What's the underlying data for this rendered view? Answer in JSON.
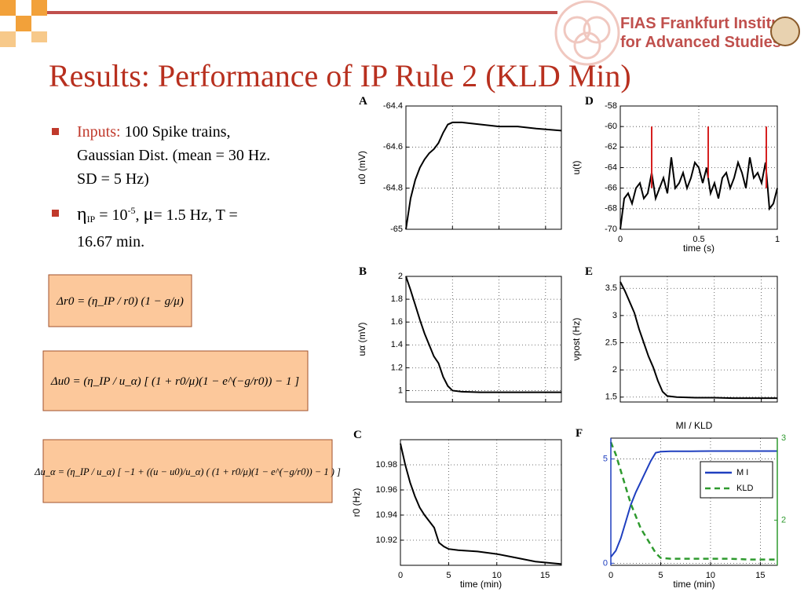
{
  "header": {
    "title": "Results: Performance of IP Rule 2 (KLD Min)",
    "logo_line1": "FIAS Frankfurt Institute",
    "logo_line2": "for Advanced Studies"
  },
  "bullets": [
    {
      "lead": "Inputs:",
      "lines": [
        "100 Spike trains,",
        "Gaussian Dist. (mean = 30 Hz.",
        "SD = 5 Hz)"
      ]
    },
    {
      "eta": "η",
      "eta_sub": "IP",
      "eq": " = 10",
      "exp": "-5",
      "mu_pre": ", ",
      "mu": "μ",
      "rest": "= 1.5 Hz, T =",
      "line2": "16.67 min."
    }
  ],
  "equations": [
    "Δr0 = (η_IP / r0) (1 − g/μ)",
    "Δu0 = (η_IP / u_α) [ (1 + r0/μ)(1 − e^(−g/r0)) − 1 ]",
    "Δu_α = (η_IP / u_α) [ −1 + ((u − u0)/u_α) ( (1 + r0/μ)(1 − e^(−g/r0)) − 1 ) ]"
  ],
  "chart_data": [
    {
      "type": "line",
      "label": "A",
      "ylabel": "u0 (mV)",
      "xlim": [
        0,
        16.7
      ],
      "ylim": [
        -65,
        -64.4
      ],
      "yticks": [
        -64.4,
        -64.6,
        -64.8,
        -65
      ],
      "xticks": [
        0,
        5,
        10,
        15
      ],
      "show_xtick_labels": false,
      "grid": true,
      "series": [
        {
          "color": "#000000",
          "x": [
            0,
            0.5,
            1,
            1.5,
            2,
            2.5,
            3,
            3.5,
            4,
            4.5,
            5,
            6,
            8,
            10,
            12,
            14,
            16.7
          ],
          "values": [
            -65,
            -64.85,
            -64.76,
            -64.7,
            -64.66,
            -64.63,
            -64.61,
            -64.58,
            -64.53,
            -64.49,
            -64.48,
            -64.48,
            -64.49,
            -64.5,
            -64.5,
            -64.51,
            -64.52
          ]
        }
      ]
    },
    {
      "type": "line",
      "label": "D",
      "ylabel": "u(t)",
      "xlabel": "time (s)",
      "xlim": [
        0,
        1
      ],
      "ylim": [
        -70,
        -58
      ],
      "yticks": [
        -58,
        -60,
        -62,
        -64,
        -66,
        -68,
        -70
      ],
      "xticks": [
        0,
        0.5,
        1
      ],
      "show_xtick_labels": true,
      "grid": true,
      "series": [
        {
          "color": "#000000",
          "x": [
            0,
            0.025,
            0.05,
            0.075,
            0.1,
            0.125,
            0.15,
            0.175,
            0.2,
            0.225,
            0.25,
            0.275,
            0.3,
            0.325,
            0.35,
            0.375,
            0.4,
            0.425,
            0.45,
            0.475,
            0.5,
            0.525,
            0.55,
            0.575,
            0.6,
            0.625,
            0.65,
            0.675,
            0.7,
            0.725,
            0.75,
            0.775,
            0.8,
            0.825,
            0.85,
            0.875,
            0.9,
            0.925,
            0.95,
            0.975,
            1
          ],
          "values": [
            -70,
            -67,
            -66.5,
            -67.5,
            -66,
            -65.5,
            -67,
            -66.5,
            -64.5,
            -67,
            -66,
            -65,
            -66.5,
            -63,
            -66,
            -65.5,
            -64.5,
            -66,
            -65,
            -63.5,
            -64,
            -65.5,
            -64,
            -66.5,
            -65.5,
            -67,
            -65,
            -64.5,
            -66,
            -65,
            -63.5,
            -64.5,
            -66,
            -63,
            -65,
            -64.5,
            -65.5,
            -63.5,
            -68,
            -67.5,
            -66
          ]
        },
        {
          "color": "#d62020",
          "x": [
            0.2,
            0.2,
            0.38,
            0.56,
            0.56,
            0.75,
            0.93,
            0.93
          ],
          "values": [
            -66,
            -60,
            null,
            -65,
            -60,
            null,
            -66,
            -60
          ]
        }
      ]
    },
    {
      "type": "line",
      "label": "B",
      "ylabel": "uα (mV)",
      "xlim": [
        0,
        16.7
      ],
      "ylim": [
        0.9,
        2
      ],
      "yticks": [
        2,
        1.8,
        1.6,
        1.4,
        1.2,
        1
      ],
      "xticks": [
        0,
        5,
        10,
        15
      ],
      "show_xtick_labels": false,
      "grid": true,
      "series": [
        {
          "color": "#000000",
          "x": [
            0,
            0.5,
            1,
            1.5,
            2,
            2.5,
            3,
            3.5,
            4,
            4.5,
            5,
            6,
            8,
            10,
            12,
            14,
            16.7
          ],
          "values": [
            2,
            1.88,
            1.75,
            1.62,
            1.5,
            1.4,
            1.3,
            1.24,
            1.12,
            1.04,
            1.0,
            0.99,
            0.985,
            0.985,
            0.985,
            0.985,
            0.985
          ]
        }
      ]
    },
    {
      "type": "line",
      "label": "E",
      "ylabel": "νpost (Hz)",
      "xlim": [
        0,
        16.7
      ],
      "ylim": [
        1.41,
        3.72
      ],
      "yticks": [
        3.5,
        3,
        2.5,
        2,
        1.5
      ],
      "xticks": [
        0,
        5,
        10,
        15
      ],
      "show_xtick_labels": false,
      "grid": true,
      "series": [
        {
          "color": "#000000",
          "x": [
            0,
            0.5,
            1,
            1.5,
            2,
            2.5,
            3,
            3.5,
            4,
            4.5,
            5,
            6,
            8,
            10,
            12,
            14,
            16.7
          ],
          "values": [
            3.62,
            3.45,
            3.25,
            3.05,
            2.75,
            2.5,
            2.25,
            2.05,
            1.8,
            1.6,
            1.52,
            1.5,
            1.49,
            1.49,
            1.48,
            1.48,
            1.48
          ]
        }
      ]
    },
    {
      "type": "line",
      "label": "C",
      "ylabel": "r0 (Hz)",
      "xlabel": "time (min)",
      "xlim": [
        0,
        16.7
      ],
      "ylim": [
        10.9,
        11.0
      ],
      "yticks": [
        10.98,
        10.96,
        10.94,
        10.92
      ],
      "xticks": [
        0,
        5,
        10,
        15
      ],
      "show_xtick_labels": true,
      "grid": true,
      "series": [
        {
          "color": "#000000",
          "x": [
            0,
            0.5,
            1,
            1.5,
            2,
            2.5,
            3,
            3.5,
            4,
            4.5,
            5,
            6,
            8,
            10,
            12,
            14,
            16.7
          ],
          "values": [
            10.997,
            10.98,
            10.966,
            10.955,
            10.946,
            10.94,
            10.935,
            10.93,
            10.918,
            10.915,
            10.913,
            10.912,
            10.911,
            10.909,
            10.906,
            10.903,
            10.901
          ]
        }
      ]
    },
    {
      "type": "line",
      "label": "F",
      "title": "MI / KLD",
      "xlabel": "time (min)",
      "xlim": [
        0,
        16.7
      ],
      "ylim": [
        -0.1,
        6
      ],
      "yticks": [
        0,
        5
      ],
      "y2lim": [
        1.45,
        3
      ],
      "y2ticks": [
        2,
        3
      ],
      "xticks": [
        0,
        5,
        10,
        15
      ],
      "show_xtick_labels": true,
      "grid": true,
      "legend": "upper right",
      "ycolor": "#1f3fbf",
      "y2color": "#2e9a2e",
      "series": [
        {
          "name": "M I",
          "color": "#1f3fbf",
          "x": [
            0,
            0.5,
            1,
            1.5,
            2,
            2.5,
            3,
            3.5,
            4,
            4.5,
            5,
            6,
            8,
            10,
            12,
            14,
            16.7
          ],
          "values": [
            0.3,
            0.6,
            1.2,
            2,
            2.8,
            3.4,
            3.9,
            4.4,
            4.9,
            5.3,
            5.35,
            5.37,
            5.37,
            5.38,
            5.38,
            5.38,
            5.38
          ]
        },
        {
          "name": "KLD",
          "color": "#2e9a2e",
          "axis": "y2",
          "dashed": true,
          "x": [
            0,
            0.5,
            1,
            1.5,
            2,
            2.5,
            3,
            3.5,
            4,
            4.5,
            5,
            6,
            8,
            10,
            12,
            14,
            16.7
          ],
          "values": [
            2.95,
            2.8,
            2.6,
            2.4,
            2.2,
            2.05,
            1.9,
            1.8,
            1.7,
            1.6,
            1.54,
            1.53,
            1.53,
            1.53,
            1.53,
            1.52,
            1.52
          ]
        }
      ]
    }
  ]
}
